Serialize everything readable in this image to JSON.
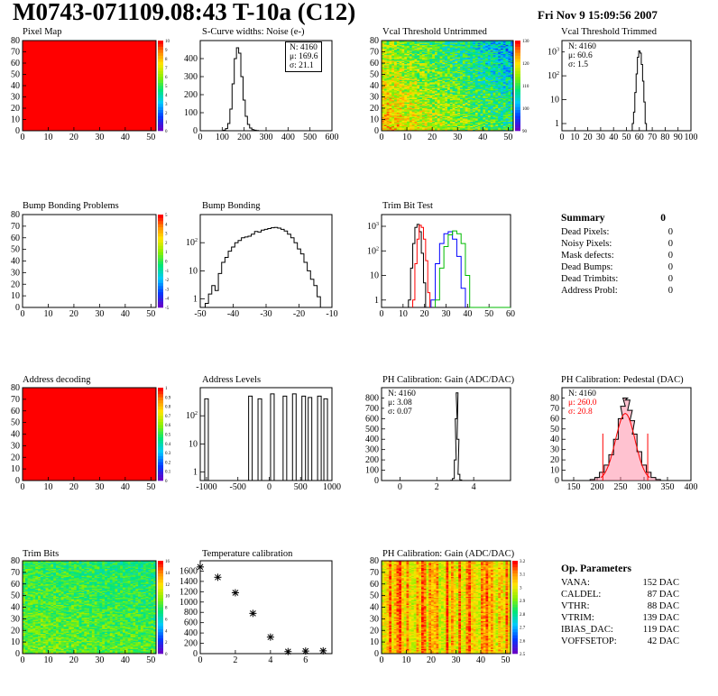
{
  "header": {
    "title": "M0743-071109.08:43 T-10a (C12)",
    "date": "Fri Nov  9 15:09:56 2007"
  },
  "colors": {
    "red": "#ff0000",
    "blue": "#0000ff",
    "green": "#00bb00",
    "black": "#000000"
  },
  "chart_data": [
    {
      "id": "pixel-map",
      "type": "heatmap",
      "title": "Pixel Map",
      "xlim": [
        0,
        52
      ],
      "ylim": [
        0,
        80
      ],
      "xticks": [
        0,
        10,
        20,
        30,
        40,
        50
      ],
      "yticks": [
        0,
        10,
        20,
        30,
        40,
        50,
        60,
        70,
        80
      ],
      "fill": "uniform-max",
      "zticks": [
        0,
        1,
        2,
        3,
        4,
        5,
        6,
        7,
        8,
        9,
        10
      ]
    },
    {
      "id": "scurve-noise",
      "type": "line",
      "title": "S-Curve widths: Noise (e-)",
      "xlim": [
        0,
        600
      ],
      "ylim": [
        0,
        500
      ],
      "xticks": [
        0,
        100,
        200,
        300,
        400,
        500,
        600
      ],
      "yticks": [
        0,
        100,
        200,
        300,
        400
      ],
      "stats": {
        "N": "4160",
        "mu": "169.6",
        "sigma": "21.1"
      },
      "series": [
        {
          "x": [
            100,
            110,
            120,
            130,
            140,
            150,
            160,
            170,
            180,
            190,
            200,
            210,
            220,
            230,
            240,
            250,
            260,
            270,
            280
          ],
          "values": [
            0,
            3,
            12,
            40,
            120,
            260,
            400,
            460,
            430,
            300,
            170,
            80,
            35,
            15,
            6,
            3,
            1,
            0,
            0
          ]
        }
      ]
    },
    {
      "id": "vcal-untrimmed",
      "type": "heatmap",
      "title": "Vcal Threshold Untrimmed",
      "xlim": [
        0,
        52
      ],
      "ylim": [
        0,
        80
      ],
      "xticks": [
        0,
        10,
        20,
        30,
        40,
        50
      ],
      "yticks": [
        0,
        10,
        20,
        30,
        40,
        50,
        60,
        70,
        80
      ],
      "fill": "noise",
      "zticks": [
        90,
        100,
        110,
        120,
        130
      ]
    },
    {
      "id": "vcal-trimmed",
      "type": "line",
      "title": "Vcal Threshold Trimmed",
      "log": true,
      "xlim": [
        0,
        100
      ],
      "ylim": [
        0.5,
        3000
      ],
      "xticks": [
        0,
        10,
        20,
        30,
        40,
        50,
        60,
        70,
        80,
        90,
        100
      ],
      "ylogticks": [
        1,
        10,
        100,
        1000
      ],
      "stats": {
        "N": "4160",
        "mu": "60.6",
        "sigma": "1.5"
      },
      "series": [
        {
          "x": [
            55,
            56,
            57,
            58,
            59,
            60,
            61,
            62,
            63,
            64,
            65,
            66
          ],
          "values": [
            1,
            3,
            20,
            120,
            600,
            1100,
            900,
            300,
            60,
            8,
            1,
            0
          ]
        }
      ]
    },
    {
      "id": "bump-problems",
      "type": "heatmap",
      "title": "Bump Bonding Problems",
      "xlim": [
        0,
        52
      ],
      "ylim": [
        0,
        80
      ],
      "xticks": [
        0,
        10,
        20,
        30,
        40,
        50
      ],
      "yticks": [
        0,
        10,
        20,
        30,
        40,
        50,
        60,
        70,
        80
      ],
      "fill": "none",
      "zticks": [
        -5,
        -4,
        -3,
        -2,
        -1,
        0,
        1,
        2,
        3,
        4,
        5
      ]
    },
    {
      "id": "bump-bonding",
      "type": "line",
      "title": "Bump Bonding",
      "log": true,
      "xlim": [
        -50,
        -10
      ],
      "ylim": [
        0.5,
        1000
      ],
      "xticks": [
        -50,
        -40,
        -30,
        -20,
        -10
      ],
      "ylogticks": [
        1,
        10,
        100
      ],
      "series": [
        {
          "x": [
            -48,
            -47,
            -46,
            -45,
            -44,
            -43,
            -42,
            -41,
            -40,
            -39,
            -38,
            -37,
            -36,
            -35,
            -34,
            -33,
            -32,
            -31,
            -30,
            -29,
            -28,
            -27,
            -26,
            -25,
            -24,
            -23,
            -22,
            -21,
            -20,
            -19,
            -18,
            -17,
            -16,
            -15,
            -14
          ],
          "values": [
            0.7,
            1.5,
            3,
            2,
            8,
            20,
            30,
            50,
            70,
            100,
            120,
            150,
            160,
            170,
            200,
            250,
            240,
            280,
            300,
            320,
            340,
            350,
            330,
            300,
            260,
            200,
            150,
            100,
            60,
            40,
            20,
            10,
            5,
            3,
            1.2
          ]
        }
      ]
    },
    {
      "id": "trim-bit-test",
      "type": "line",
      "title": "Trim Bit Test",
      "log": true,
      "xlim": [
        0,
        60
      ],
      "ylim": [
        0.5,
        3000
      ],
      "xticks": [
        0,
        10,
        20,
        30,
        40,
        50,
        60
      ],
      "ylogticks": [
        1,
        10,
        100,
        1000
      ],
      "series": [
        {
          "color": "black",
          "x": [
            13,
            14,
            15,
            16,
            17,
            18,
            19,
            20
          ],
          "values": [
            1,
            20,
            200,
            900,
            1200,
            600,
            80,
            5
          ]
        },
        {
          "color": "red",
          "x": [
            15,
            16,
            17,
            18,
            19,
            20,
            21,
            22
          ],
          "values": [
            1,
            30,
            300,
            1100,
            900,
            300,
            40,
            2
          ]
        },
        {
          "color": "blue",
          "x": [
            24,
            26,
            28,
            30,
            32,
            34,
            36,
            38
          ],
          "values": [
            1,
            30,
            200,
            500,
            600,
            300,
            60,
            3
          ]
        },
        {
          "color": "green",
          "x": [
            26,
            28,
            30,
            32,
            34,
            36,
            38,
            40
          ],
          "values": [
            1,
            20,
            150,
            450,
            650,
            500,
            200,
            10
          ]
        }
      ]
    },
    {
      "id": "address-decoding",
      "type": "heatmap",
      "title": "Address decoding",
      "xlim": [
        0,
        52
      ],
      "ylim": [
        0,
        80
      ],
      "xticks": [
        0,
        10,
        20,
        30,
        40,
        50
      ],
      "yticks": [
        0,
        10,
        20,
        30,
        40,
        50,
        60,
        70,
        80
      ],
      "fill": "uniform-max",
      "zticks": [
        0,
        0.1,
        0.2,
        0.3,
        0.4,
        0.5,
        0.6,
        0.7,
        0.8,
        0.9,
        1
      ]
    },
    {
      "id": "address-levels",
      "type": "line",
      "title": "Address Levels",
      "log": true,
      "xlim": [
        -1100,
        1000
      ],
      "ylim": [
        0.5,
        1000
      ],
      "xticks": [
        -1000,
        -500,
        0,
        500,
        1000
      ],
      "ylogticks": [
        1,
        10,
        100
      ],
      "series": [
        {
          "x": [
            -1000,
            -300,
            -150,
            50,
            250,
            400,
            550,
            650,
            800,
            900
          ],
          "values": [
            400,
            500,
            400,
            600,
            500,
            600,
            500,
            450,
            500,
            400
          ]
        }
      ]
    },
    {
      "id": "ph-gain",
      "type": "line",
      "title": "PH Calibration: Gain (ADC/DAC)",
      "xlim": [
        -1,
        6
      ],
      "ylim": [
        0,
        900
      ],
      "xticks": [
        0,
        2,
        4
      ],
      "yticks": [
        0,
        100,
        200,
        300,
        400,
        500,
        600,
        700,
        800
      ],
      "stats": {
        "N": "4160",
        "mu": "3.08",
        "sigma": "0.07"
      },
      "series": [
        {
          "x": [
            2.8,
            2.9,
            3.0,
            3.05,
            3.1,
            3.15,
            3.2,
            3.3
          ],
          "values": [
            2,
            20,
            200,
            600,
            850,
            400,
            60,
            5
          ]
        }
      ]
    },
    {
      "id": "ph-pedestal",
      "type": "histogram",
      "title": "PH Calibration: Pedestal (DAC)",
      "xlim": [
        125,
        400
      ],
      "ylim": [
        0,
        90
      ],
      "xticks": [
        150,
        200,
        250,
        300,
        350,
        400
      ],
      "yticks": [
        0,
        10,
        20,
        30,
        40,
        50,
        60,
        70,
        80
      ],
      "stats": {
        "N": "4160",
        "mu": "260.0",
        "sigma": "20.8"
      },
      "fit": {
        "mean": 260,
        "sigma": 20.8,
        "height": 65
      },
      "series": [
        {
          "x": [
            190,
            200,
            210,
            220,
            230,
            240,
            250,
            255,
            260,
            265,
            270,
            275,
            280,
            290,
            300,
            310,
            320,
            330
          ],
          "values": [
            1,
            3,
            8,
            15,
            25,
            40,
            60,
            72,
            80,
            78,
            68,
            58,
            45,
            28,
            15,
            8,
            3,
            1
          ]
        }
      ]
    },
    {
      "id": "trim-bits",
      "type": "heatmap",
      "title": "Trim Bits",
      "xlim": [
        0,
        52
      ],
      "ylim": [
        0,
        80
      ],
      "xticks": [
        0,
        10,
        20,
        30,
        40,
        50
      ],
      "yticks": [
        0,
        10,
        20,
        30,
        40,
        50,
        60,
        70,
        80
      ],
      "fill": "noise-green",
      "zticks": [
        0,
        2,
        4,
        6,
        8,
        10,
        12,
        14,
        16
      ]
    },
    {
      "id": "temperature-calibration",
      "type": "scatter",
      "title": "Temperature calibration",
      "xlim": [
        0,
        7.5
      ],
      "ylim": [
        0,
        1800
      ],
      "xticks": [
        0,
        2,
        4,
        6
      ],
      "yticks": [
        0,
        200,
        400,
        600,
        800,
        1000,
        1200,
        1400,
        1600
      ],
      "series": [
        {
          "x": [
            0,
            1,
            2,
            3,
            4,
            5,
            6,
            7
          ],
          "values": [
            1680,
            1480,
            1180,
            780,
            320,
            40,
            50,
            55
          ]
        }
      ]
    },
    {
      "id": "ph-gain-map",
      "type": "heatmap",
      "title": "PH Calibration: Gain (ADC/DAC)",
      "xlim": [
        0,
        52
      ],
      "ylim": [
        0,
        80
      ],
      "xticks": [
        0,
        10,
        20,
        30,
        40,
        50
      ],
      "yticks": [
        0,
        10,
        20,
        30,
        40,
        50,
        60,
        70,
        80
      ],
      "fill": "noise-orange",
      "zticks": [
        2.5,
        2.6,
        2.7,
        2.8,
        2.9,
        3,
        3.1,
        3.2
      ]
    }
  ],
  "summary": {
    "title": "Summary",
    "value": "0",
    "rows": [
      {
        "label": "Dead Pixels:",
        "value": "0"
      },
      {
        "label": "Noisy Pixels:",
        "value": "0"
      },
      {
        "label": "Mask defects:",
        "value": "0"
      },
      {
        "label": "Dead Bumps:",
        "value": "0"
      },
      {
        "label": "Dead Trimbits:",
        "value": "0"
      },
      {
        "label": "Address Probl:",
        "value": "0"
      }
    ]
  },
  "op_params": {
    "title": "Op. Parameters",
    "rows": [
      {
        "label": "VANA:",
        "value": "152 DAC"
      },
      {
        "label": "CALDEL:",
        "value": "87 DAC"
      },
      {
        "label": "VTHR:",
        "value": "88 DAC"
      },
      {
        "label": "VTRIM:",
        "value": "139 DAC"
      },
      {
        "label": "IBIAS_DAC:",
        "value": "119 DAC"
      },
      {
        "label": "VOFFSETOP:",
        "value": "42 DAC"
      }
    ]
  }
}
